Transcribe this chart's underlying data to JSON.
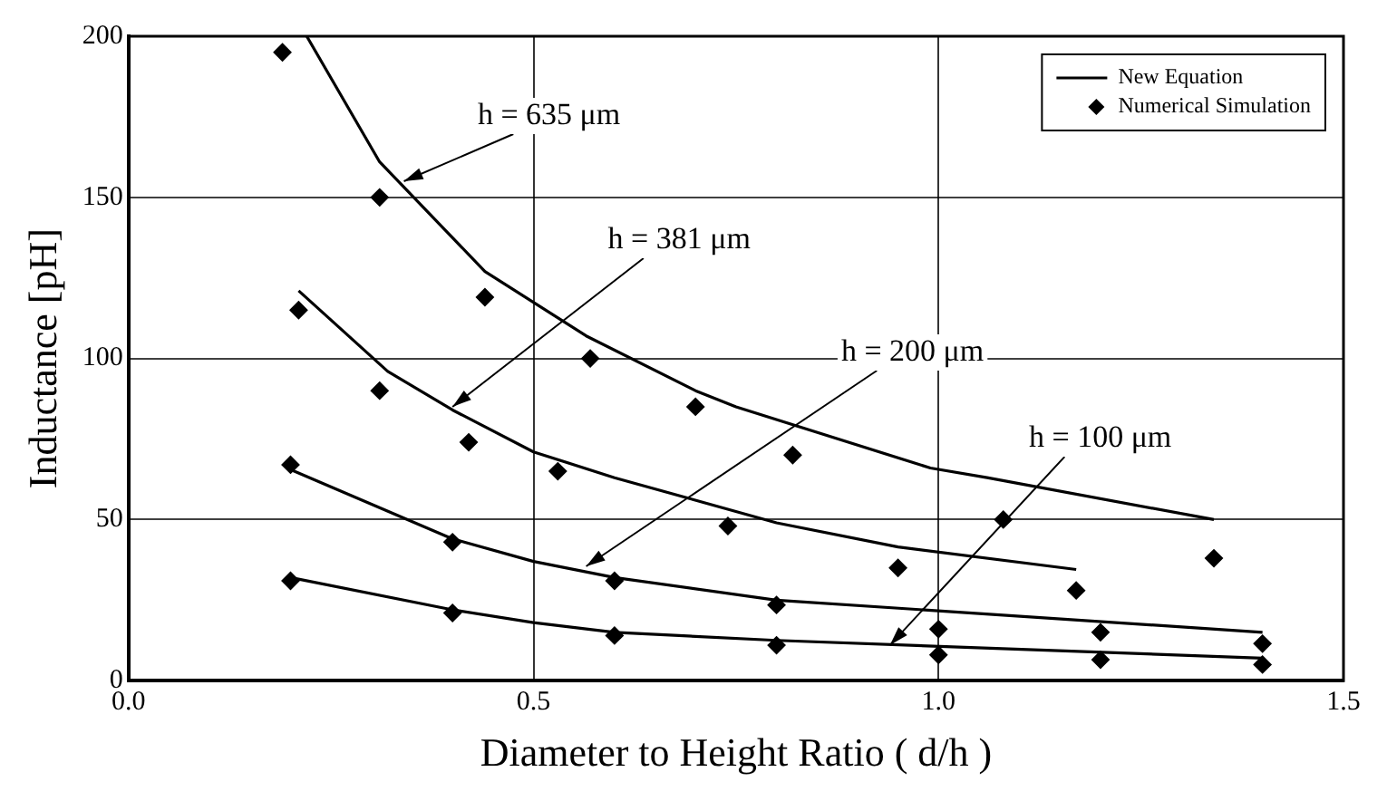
{
  "chart_data": {
    "type": "line",
    "xlabel": "Diameter to Height Ratio ( d/h )",
    "ylabel": "Inductance [pH]",
    "xlim": [
      0,
      1.5
    ],
    "xticks": [
      {
        "value": 0,
        "label": "0.0"
      },
      {
        "value": 0.5,
        "label": "0.5"
      },
      {
        "value": 1,
        "label": "1.0"
      },
      {
        "value": 1.5,
        "label": "1.5"
      }
    ],
    "ylim": [
      0,
      200
    ],
    "yticks": [
      0,
      50,
      100,
      150,
      200
    ],
    "grid": true,
    "legend": "top right",
    "series": [
      {
        "name": "New Equation",
        "color": "#000000",
        "marker": "none",
        "line_style": "solid",
        "x": [
          0.22,
          0.31,
          0.44,
          0.565,
          0.7,
          0.75,
          0.99,
          1.06,
          1.34
        ],
        "values": [
          200,
          161,
          127,
          107,
          90,
          85,
          66,
          63,
          50
        ]
      },
      {
        "color": "#000000",
        "marker": "none",
        "line_style": "solid",
        "x": [
          0.21,
          0.32,
          0.4,
          0.5,
          0.6,
          0.8,
          0.95,
          1.17
        ],
        "values": [
          121,
          96,
          84,
          71,
          63,
          49,
          41.5,
          34.5
        ]
      },
      {
        "color": "#000000",
        "marker": "none",
        "line_style": "solid",
        "x": [
          0.2,
          0.4,
          0.5,
          0.6,
          0.8,
          1.4
        ],
        "values": [
          65.5,
          44,
          37,
          32,
          25,
          15
        ]
      },
      {
        "color": "#000000",
        "marker": "none",
        "line_style": "solid",
        "x": [
          0.2,
          0.4,
          0.5,
          0.6,
          0.8,
          1.4
        ],
        "values": [
          32,
          22,
          18,
          15,
          12.5,
          7
        ]
      },
      {
        "name": "Numerical Simulation",
        "type": "scatter",
        "color": "#000000",
        "marker": "diamond",
        "x": [
          0.19,
          0.31,
          0.44,
          0.57,
          0.7,
          0.82,
          1.08,
          1.34,
          0.21,
          0.31,
          0.42,
          0.53,
          0.74,
          0.95,
          1.17,
          0.2,
          0.4,
          0.6,
          0.8,
          1.0,
          1.2,
          1.4,
          0.2,
          0.4,
          0.6,
          0.8,
          1.0,
          1.2,
          1.4
        ],
        "values": [
          195,
          150,
          119,
          100,
          85,
          70,
          50,
          38,
          115,
          90,
          74,
          65,
          48,
          35,
          28,
          67,
          43,
          31,
          23.5,
          16,
          15,
          11.5,
          31,
          21,
          14,
          11,
          8,
          6.5,
          5
        ]
      }
    ],
    "annotations": [
      {
        "text": "h = 635 μm",
        "x": 0.34,
        "y": 155
      },
      {
        "text": "h = 381 μm",
        "x": 0.4,
        "y": 85
      },
      {
        "text": "h = 200 μm",
        "x": 0.565,
        "y": 35.5
      },
      {
        "text": "h = 100 μm",
        "x": 0.94,
        "y": 11
      }
    ]
  }
}
